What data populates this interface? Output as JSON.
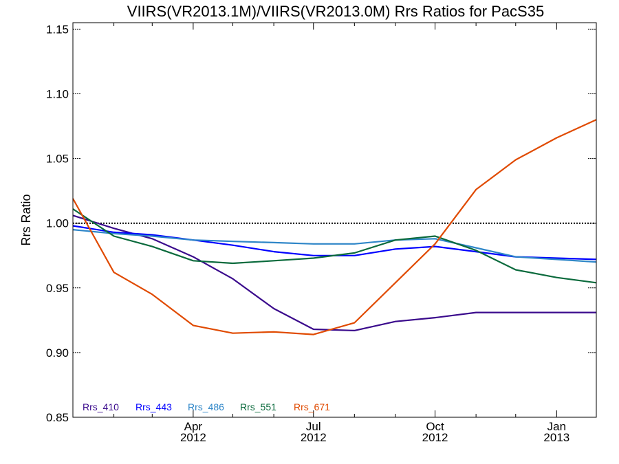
{
  "chart_data": {
    "type": "line",
    "title": "VIIRS(VR2013.1M)/VIIRS(VR2013.0M)  Rrs Ratios for PacS35",
    "ylabel": "Rrs Ratio",
    "xlabel": "",
    "xlim": [
      "2012-01-01",
      "2013-01-31"
    ],
    "ylim": [
      0.85,
      1.155
    ],
    "yticks": [
      "0.85",
      "0.90",
      "0.95",
      "1.00",
      "1.05",
      "1.10",
      "1.15"
    ],
    "xticks": [
      {
        "date": "2012-04-01",
        "line1": "Apr",
        "line2": "2012"
      },
      {
        "date": "2012-07-01",
        "line1": "Jul",
        "line2": "2012"
      },
      {
        "date": "2012-10-01",
        "line1": "Oct",
        "line2": "2012"
      },
      {
        "date": "2013-01-01",
        "line1": "Jan",
        "line2": "2013"
      }
    ],
    "minor_xticks": [
      "2012-02-01",
      "2012-03-01",
      "2012-05-01",
      "2012-06-01",
      "2012-08-01",
      "2012-09-01",
      "2012-11-01",
      "2012-12-01"
    ],
    "reference_line": {
      "y": 1.0,
      "style": "dotted"
    },
    "grid": false,
    "legend_position": "bottom-left",
    "series": [
      {
        "name": "Rrs_410",
        "color": "#3a0a8c",
        "x": [
          "2012-01-01",
          "2012-02-01",
          "2012-03-01",
          "2012-04-01",
          "2012-05-01",
          "2012-06-01",
          "2012-07-01",
          "2012-08-01",
          "2012-09-01",
          "2012-10-01",
          "2012-11-01",
          "2012-12-01",
          "2013-01-01",
          "2013-01-31"
        ],
        "values": [
          1.006,
          0.996,
          0.988,
          0.974,
          0.957,
          0.934,
          0.918,
          0.917,
          0.924,
          0.927,
          0.931,
          0.931,
          0.931,
          0.931
        ]
      },
      {
        "name": "Rrs_443",
        "color": "#0000ff",
        "x": [
          "2012-01-01",
          "2012-02-01",
          "2012-03-01",
          "2012-04-01",
          "2012-05-01",
          "2012-06-01",
          "2012-07-01",
          "2012-08-01",
          "2012-09-01",
          "2012-10-01",
          "2012-11-01",
          "2012-12-01",
          "2013-01-01",
          "2013-01-31"
        ],
        "values": [
          0.998,
          0.993,
          0.991,
          0.987,
          0.983,
          0.978,
          0.975,
          0.975,
          0.98,
          0.982,
          0.978,
          0.974,
          0.973,
          0.972
        ]
      },
      {
        "name": "Rrs_486",
        "color": "#2e86c8",
        "x": [
          "2012-01-01",
          "2012-02-01",
          "2012-03-01",
          "2012-04-01",
          "2012-05-01",
          "2012-06-01",
          "2012-07-01",
          "2012-08-01",
          "2012-09-01",
          "2012-10-01",
          "2012-11-01",
          "2012-12-01",
          "2013-01-01",
          "2013-01-31"
        ],
        "values": [
          0.995,
          0.992,
          0.99,
          0.987,
          0.986,
          0.985,
          0.984,
          0.984,
          0.987,
          0.988,
          0.981,
          0.974,
          0.972,
          0.97
        ]
      },
      {
        "name": "Rrs_551",
        "color": "#0a6a3c",
        "x": [
          "2012-01-01",
          "2012-02-01",
          "2012-03-01",
          "2012-04-01",
          "2012-05-01",
          "2012-06-01",
          "2012-07-01",
          "2012-08-01",
          "2012-09-01",
          "2012-10-01",
          "2012-11-01",
          "2012-12-01",
          "2013-01-01",
          "2013-01-31"
        ],
        "values": [
          1.011,
          0.99,
          0.982,
          0.971,
          0.969,
          0.971,
          0.973,
          0.977,
          0.987,
          0.99,
          0.979,
          0.964,
          0.958,
          0.954
        ]
      },
      {
        "name": "Rrs_671",
        "color": "#e04a00",
        "x": [
          "2012-01-01",
          "2012-02-01",
          "2012-03-01",
          "2012-04-01",
          "2012-05-01",
          "2012-06-01",
          "2012-07-01",
          "2012-08-01",
          "2012-09-01",
          "2012-10-01",
          "2012-11-01",
          "2012-12-01",
          "2013-01-01",
          "2013-01-31"
        ],
        "values": [
          1.019,
          0.962,
          0.945,
          0.921,
          0.915,
          0.916,
          0.914,
          0.923,
          0.954,
          0.984,
          1.026,
          1.049,
          1.066,
          1.08
        ]
      }
    ]
  }
}
